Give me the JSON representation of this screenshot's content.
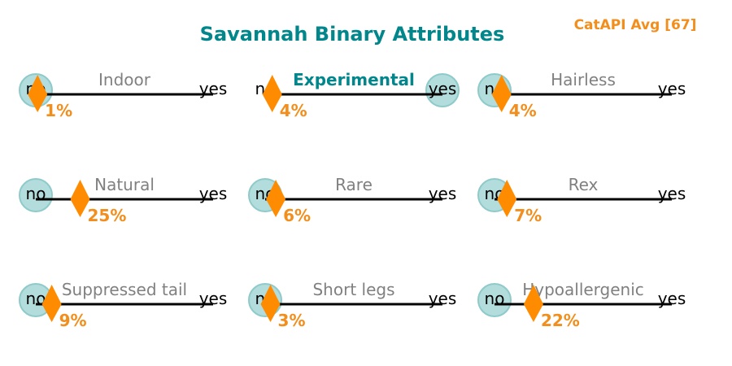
{
  "chart_data": {
    "type": "dot_scale",
    "title": "Savannah Binary Attributes",
    "avg_label": "CatAPI Avg [67]",
    "scale": {
      "min_label": "no",
      "max_label": "yes",
      "range": [
        0,
        100
      ]
    },
    "colors": {
      "title": "#00868b",
      "avg": "#f28e1c",
      "marker": "#ff8c00",
      "value_text": "#f28e1c",
      "label_muted": "#808080",
      "label_active": "#00868b",
      "circle_fill": "#b3dcdc",
      "circle_stroke": "#8fcaca",
      "axis": "#000000"
    },
    "attributes": [
      {
        "label": "Indoor",
        "value": 1,
        "value_label": "1%",
        "answer": "no",
        "highlight": false
      },
      {
        "label": "Experimental",
        "value": 4,
        "value_label": "4%",
        "answer": "yes",
        "highlight": true
      },
      {
        "label": "Hairless",
        "value": 4,
        "value_label": "4%",
        "answer": "no",
        "highlight": false
      },
      {
        "label": "Natural",
        "value": 25,
        "value_label": "25%",
        "answer": "no",
        "highlight": false
      },
      {
        "label": "Rare",
        "value": 6,
        "value_label": "6%",
        "answer": "no",
        "highlight": false
      },
      {
        "label": "Rex",
        "value": 7,
        "value_label": "7%",
        "answer": "no",
        "highlight": false
      },
      {
        "label": "Suppressed tail",
        "value": 9,
        "value_label": "9%",
        "answer": "no",
        "highlight": false
      },
      {
        "label": "Short legs",
        "value": 3,
        "value_label": "3%",
        "answer": "no",
        "highlight": false
      },
      {
        "label": "Hypoallergenic",
        "value": 22,
        "value_label": "22%",
        "answer": "no",
        "highlight": false
      }
    ]
  }
}
